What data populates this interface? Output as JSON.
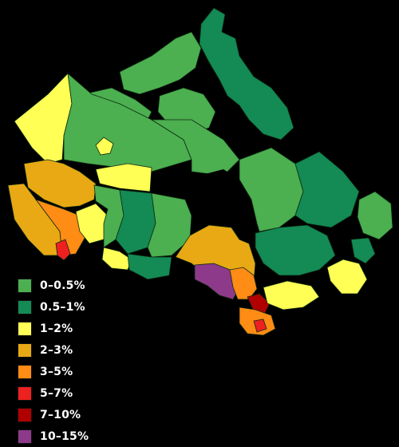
{
  "legend": {
    "items": [
      {
        "label": "0–0.5%",
        "color": "#4caf50"
      },
      {
        "label": "0.5–1%",
        "color": "#148a55"
      },
      {
        "label": "1–2%",
        "color": "#ffff55"
      },
      {
        "label": "2–3%",
        "color": "#e8a914"
      },
      {
        "label": "3–5%",
        "color": "#ff8c14"
      },
      {
        "label": "5–7%",
        "color": "#ee2020"
      },
      {
        "label": "7–10%",
        "color": "#b00000"
      },
      {
        "label": "10–15%",
        "color": "#8e3a8a"
      }
    ]
  },
  "map": {
    "background": "#000000"
  }
}
